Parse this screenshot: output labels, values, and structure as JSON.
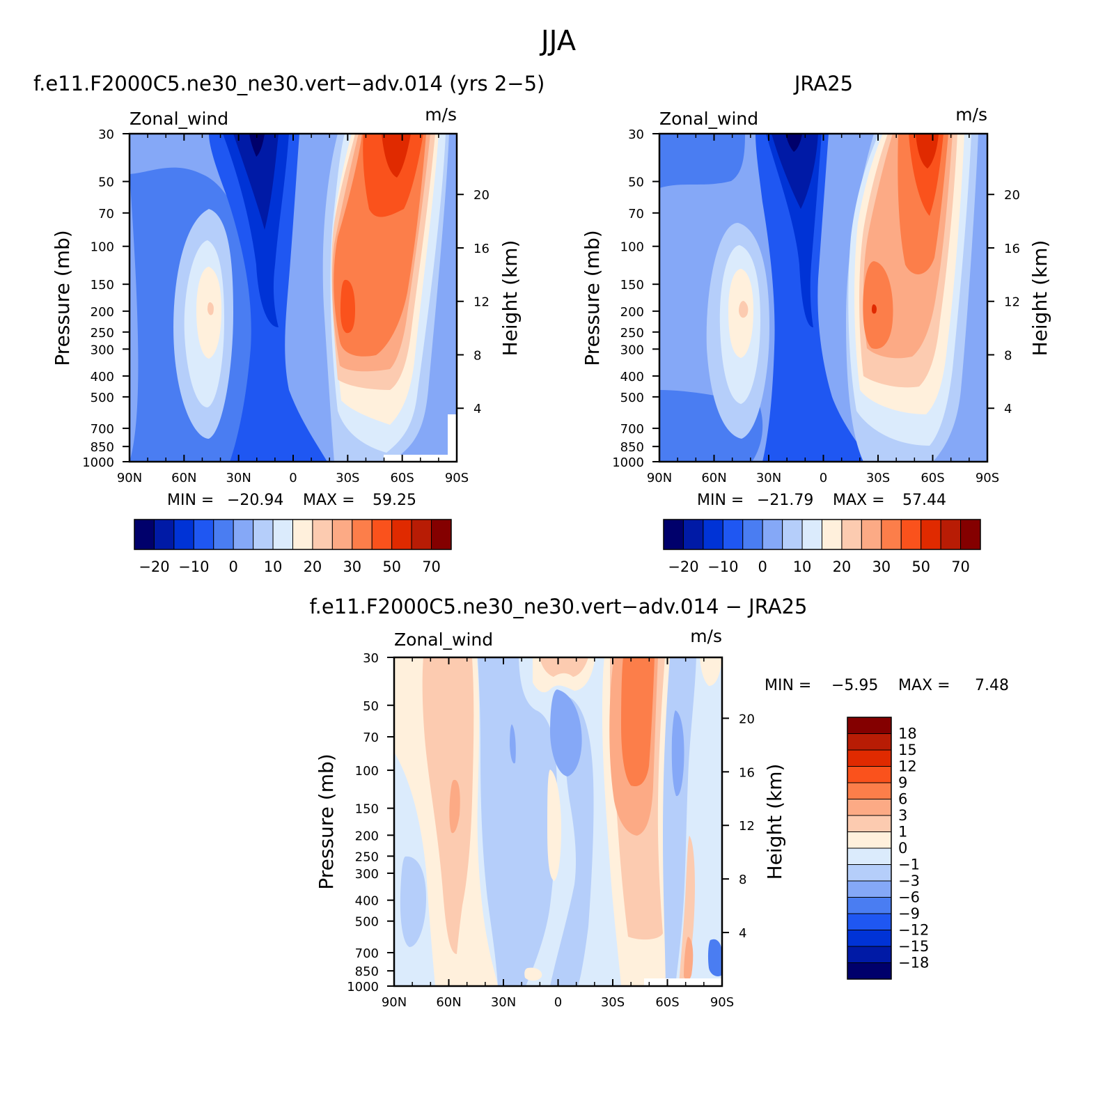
{
  "figure": {
    "title": "JJA"
  },
  "colors": {
    "main_scale": [
      "#00006b",
      "#001aa6",
      "#0033d6",
      "#1f57f2",
      "#4a7df2",
      "#85a8f7",
      "#b5cefa",
      "#dbebfc",
      "#fff0dc",
      "#fccbb0",
      "#fcaa85",
      "#fc7e4a",
      "#fa521c",
      "#e02a00",
      "#b81c05",
      "#840000"
    ],
    "diff_scale": [
      "#00006b",
      "#001aa6",
      "#0033d6",
      "#1f57f2",
      "#4a7df2",
      "#85a8f7",
      "#b5cefa",
      "#dbebfc",
      "#fff0dc",
      "#fccbb0",
      "#fcaa85",
      "#fc7e4a",
      "#fa521c",
      "#e02a00",
      "#b81c05",
      "#840000"
    ]
  },
  "chart_data": [
    {
      "id": "model",
      "type": "heatmap",
      "title": "f.e11.F2000C5.ne30_ne30.vert−adv.014 (yrs 2−5)",
      "field_label": "Zonal_wind",
      "units": "m/s",
      "ylabel": "Pressure (mb)",
      "ylabel_right": "Height (km)",
      "x_ticks": [
        "90N",
        "60N",
        "30N",
        "0",
        "30S",
        "60S",
        "90S"
      ],
      "y_ticks": [
        "30",
        "50",
        "70",
        "100",
        "150",
        "200",
        "250",
        "300",
        "400",
        "500",
        "700",
        "850",
        "1000"
      ],
      "y_ticks_right": [
        "20",
        "16",
        "12",
        "8",
        "4"
      ],
      "min_label": "MIN =",
      "min_value": "−20.94",
      "max_label": "MAX =",
      "max_value": "59.25",
      "colorbar_labels": [
        "−20",
        "−10",
        "0",
        "10",
        "20",
        "30",
        "50",
        "70"
      ],
      "levels": [
        -25,
        -20,
        -15,
        -10,
        -5,
        0,
        5,
        10,
        15,
        20,
        25,
        30,
        40,
        50,
        60,
        70
      ]
    },
    {
      "id": "obs",
      "type": "heatmap",
      "title": "JRA25",
      "field_label": "Zonal_wind",
      "units": "m/s",
      "ylabel": "Pressure (mb)",
      "ylabel_right": "Height (km)",
      "x_ticks": [
        "90N",
        "60N",
        "30N",
        "0",
        "30S",
        "60S",
        "90S"
      ],
      "y_ticks": [
        "30",
        "50",
        "70",
        "100",
        "150",
        "200",
        "250",
        "300",
        "400",
        "500",
        "700",
        "850",
        "1000"
      ],
      "y_ticks_right": [
        "20",
        "16",
        "12",
        "8",
        "4"
      ],
      "min_label": "MIN =",
      "min_value": "−21.79",
      "max_label": "MAX =",
      "max_value": "57.44",
      "colorbar_labels": [
        "−20",
        "−10",
        "0",
        "10",
        "20",
        "30",
        "50",
        "70"
      ],
      "levels": [
        -25,
        -20,
        -15,
        -10,
        -5,
        0,
        5,
        10,
        15,
        20,
        25,
        30,
        40,
        50,
        60,
        70
      ]
    },
    {
      "id": "diff",
      "type": "heatmap",
      "title": "f.e11.F2000C5.ne30_ne30.vert−adv.014 − JRA25",
      "field_label": "Zonal_wind",
      "units": "m/s",
      "ylabel": "Pressure (mb)",
      "ylabel_right": "Height (km)",
      "x_ticks": [
        "90N",
        "60N",
        "30N",
        "0",
        "30S",
        "60S",
        "90S"
      ],
      "y_ticks": [
        "30",
        "50",
        "70",
        "100",
        "150",
        "200",
        "250",
        "300",
        "400",
        "500",
        "700",
        "850",
        "1000"
      ],
      "y_ticks_right": [
        "20",
        "16",
        "12",
        "8",
        "4"
      ],
      "min_label": "MIN =",
      "min_value": "−5.95",
      "max_label": "MAX =",
      "max_value": "7.48",
      "colorbar_labels": [
        "18",
        "15",
        "12",
        "9",
        "6",
        "3",
        "1",
        "0",
        "−1",
        "−3",
        "−6",
        "−9",
        "−12",
        "−15",
        "−18"
      ],
      "levels": [
        -18,
        -15,
        -12,
        -9,
        -6,
        -3,
        -1,
        0,
        1,
        3,
        6,
        9,
        12,
        15,
        18
      ]
    }
  ]
}
